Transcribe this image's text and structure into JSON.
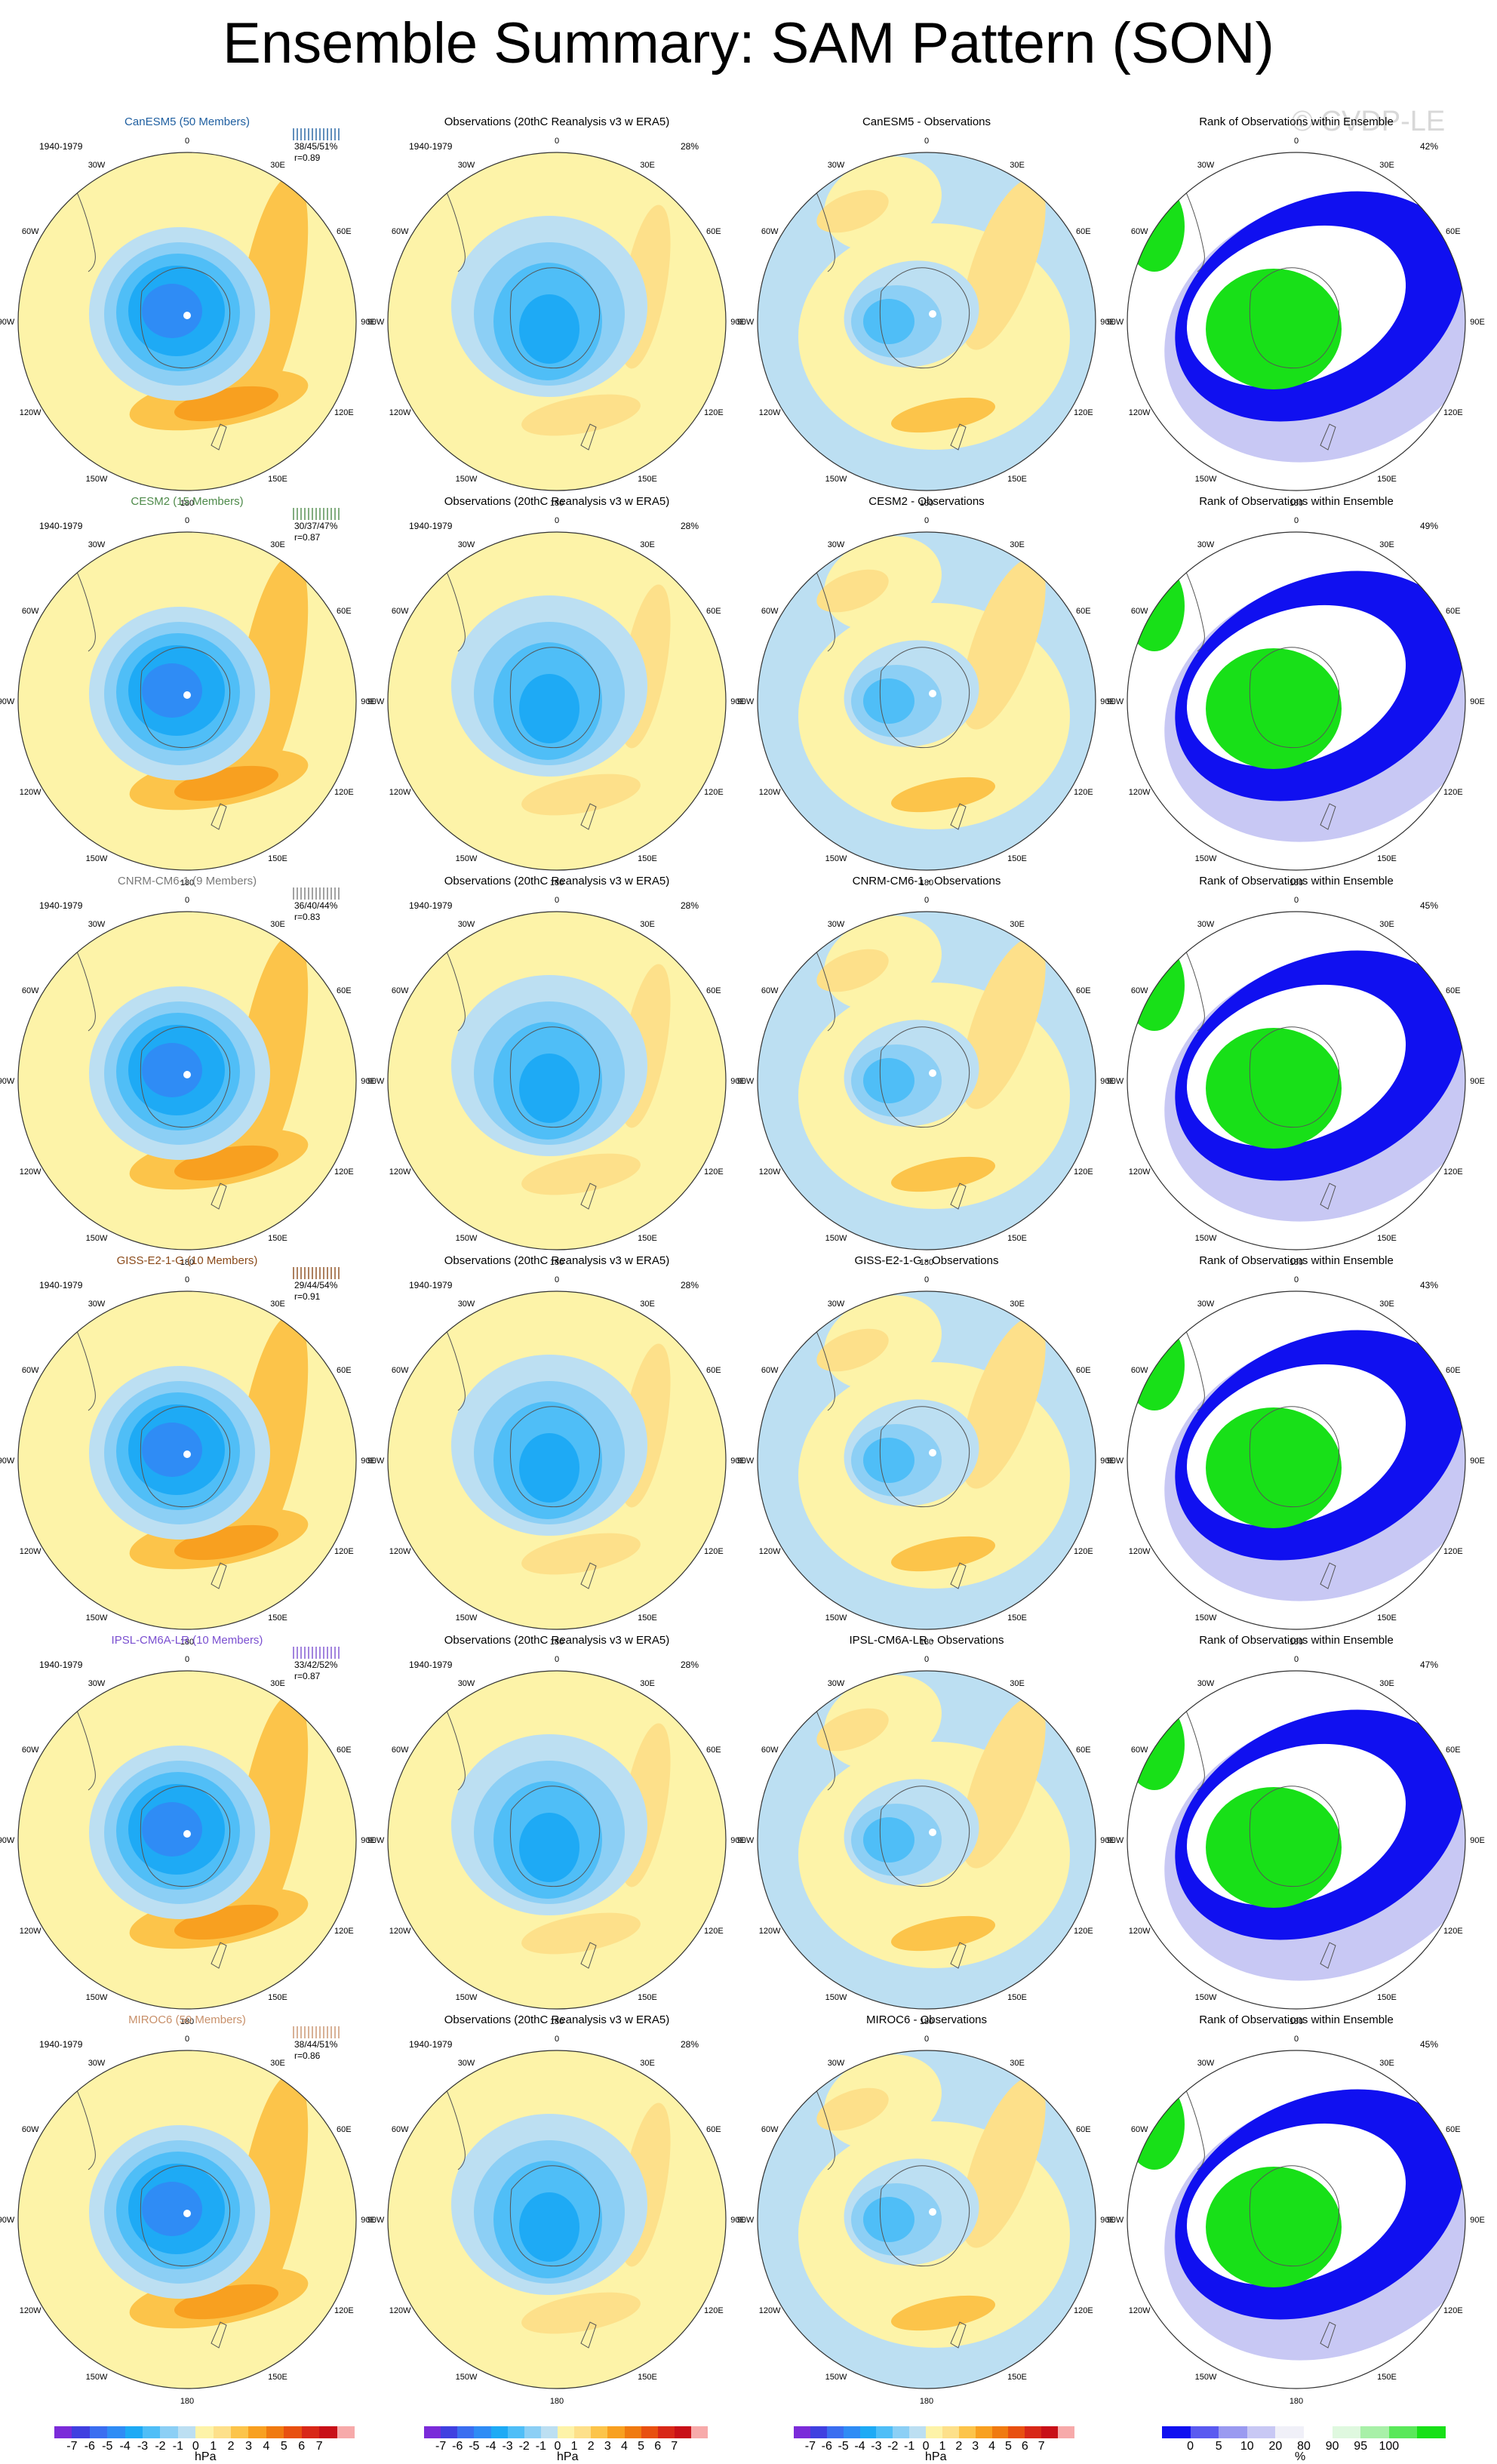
{
  "title": "Ensemble Summary: SAM Pattern (SON)",
  "watermark": "© CVDP-LE",
  "period": "1940-1979",
  "obs_title": "Observations (20thC Reanalysis v3 w ERA5)",
  "rank_title": "Rank of Observations within Ensemble",
  "lon_labels": [
    "0",
    "30E",
    "60E",
    "90E",
    "120E",
    "150E",
    "180",
    "150W",
    "120W",
    "90W",
    "60W",
    "30W"
  ],
  "rows": [
    {
      "model_title": "CanESM5 (50 Members)",
      "model_color": "#1f5fa0",
      "stats": "38/45/51%",
      "r": "r=0.89",
      "diff_title": "CanESM5 - Observations",
      "obs_pct": "28%",
      "rank_pct": "42%"
    },
    {
      "model_title": "CESM2 (15 Members)",
      "model_color": "#4e8a4a",
      "stats": "30/37/47%",
      "r": "r=0.87",
      "diff_title": "CESM2 - Observations",
      "obs_pct": "28%",
      "rank_pct": "49%"
    },
    {
      "model_title": "CNRM-CM6-1 (9 Members)",
      "model_color": "#7a7a7a",
      "stats": "36/40/44%",
      "r": "r=0.83",
      "diff_title": "CNRM-CM6-1 - Observations",
      "obs_pct": "28%",
      "rank_pct": "45%"
    },
    {
      "model_title": "GISS-E2-1-G (10 Members)",
      "model_color": "#8a4a1a",
      "stats": "29/44/54%",
      "r": "r=0.91",
      "diff_title": "GISS-E2-1-G - Observations",
      "obs_pct": "28%",
      "rank_pct": "43%"
    },
    {
      "model_title": "IPSL-CM6A-LR (10 Members)",
      "model_color": "#7a4fd0",
      "stats": "33/42/52%",
      "r": "r=0.87",
      "diff_title": "IPSL-CM6A-LR - Observations",
      "obs_pct": "28%",
      "rank_pct": "47%"
    },
    {
      "model_title": "MIROC6 (50 Members)",
      "model_color": "#c8906a",
      "stats": "38/44/51%",
      "r": "r=0.86",
      "diff_title": "MIROC6 - Observations",
      "obs_pct": "28%",
      "rank_pct": "45%"
    }
  ],
  "colorbar_hpa": {
    "colors": [
      "#7b2bd9",
      "#4040e0",
      "#3b6ef0",
      "#2f8cf5",
      "#1eaaf5",
      "#4fbef7",
      "#8ccff5",
      "#bcdff2",
      "#fdf3a8",
      "#fde08a",
      "#fcc44a",
      "#f8a020",
      "#f07a10",
      "#e85010",
      "#d82818",
      "#c81018",
      "#f7aaaa"
    ],
    "labels": [
      "-7",
      "-6",
      "-5",
      "-4",
      "-3",
      "-2",
      "-1",
      "0",
      "1",
      "2",
      "3",
      "4",
      "5",
      "6",
      "7"
    ],
    "unit": "hPa"
  },
  "colorbar_rank": {
    "colors": [
      "#1010f0",
      "#5a5af0",
      "#9a9af0",
      "#c8c8f4",
      "#f0f0f8",
      "#ffffff",
      "#dff8df",
      "#a8f0a8",
      "#5ae85a",
      "#18e018"
    ],
    "labels": [
      "0",
      "5",
      "10",
      "20",
      "80",
      "90",
      "95",
      "100"
    ],
    "unit": "%"
  },
  "icons": {
    "map": "polar-stereographic-map",
    "ticks": "ensemble-spread-ticks-icon"
  }
}
